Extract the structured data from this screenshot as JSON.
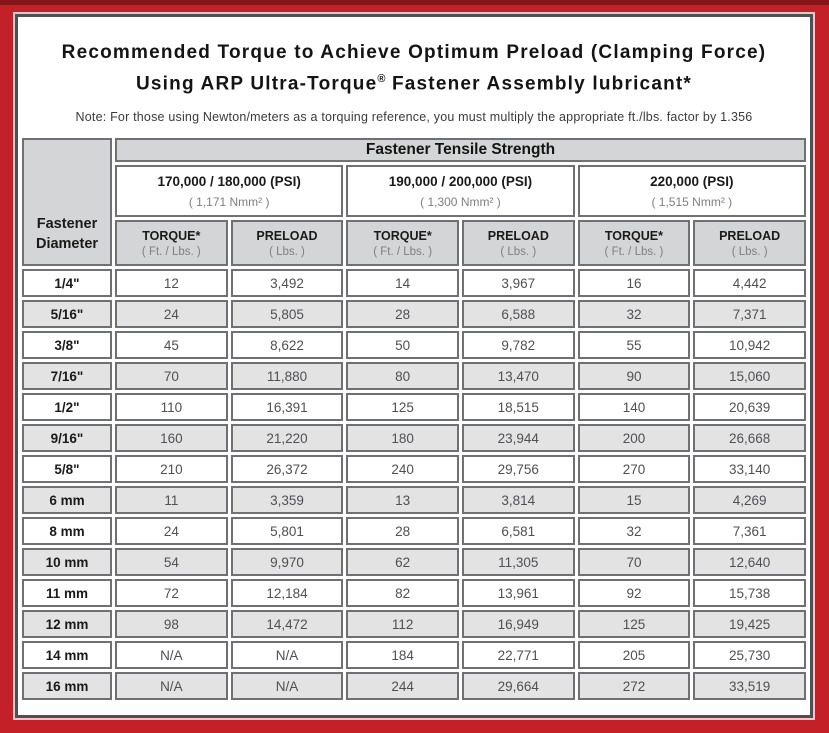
{
  "colors": {
    "frame_red": "#C32127",
    "frame_dark_red": "#86151A",
    "panel_border": "#4F5054",
    "cell_border": "#6F7073",
    "header_gray": "#D4D5D6",
    "row_alt_gray": "#E3E3E4",
    "muted_text": "#7E7F82",
    "value_text": "#4F5053"
  },
  "title": {
    "line1": "Recommended Torque to Achieve Optimum Preload (Clamping Force)",
    "line2_prefix": "Using ARP Ultra-Torque",
    "registered_mark": "®",
    "line2_suffix": " Fastener Assembly lubricant*",
    "note": "Note: For those using Newton/meters as a torquing reference, you must multiply the appropriate ft./lbs. factor by 1.356"
  },
  "table": {
    "corner_header": "Fastener Diameter",
    "group_header": "Fastener Tensile Strength",
    "strength_groups": [
      {
        "psi": "170,000 / 180,000 (PSI)",
        "nmm": "( 1,171 Nmm² )"
      },
      {
        "psi": "190,000 / 200,000 (PSI)",
        "nmm": "( 1,300 Nmm² )"
      },
      {
        "psi": "220,000 (PSI)",
        "nmm": "( 1,515 Nmm² )"
      }
    ],
    "sub_headers": {
      "torque_label": "TORQUE*",
      "torque_unit": "( Ft. / Lbs. )",
      "preload_label": "PRELOAD",
      "preload_unit": "( Lbs. )"
    },
    "rows": [
      {
        "diameter": "1/4\"",
        "values": [
          "12",
          "3,492",
          "14",
          "3,967",
          "16",
          "4,442"
        ]
      },
      {
        "diameter": "5/16\"",
        "values": [
          "24",
          "5,805",
          "28",
          "6,588",
          "32",
          "7,371"
        ]
      },
      {
        "diameter": "3/8\"",
        "values": [
          "45",
          "8,622",
          "50",
          "9,782",
          "55",
          "10,942"
        ]
      },
      {
        "diameter": "7/16\"",
        "values": [
          "70",
          "11,880",
          "80",
          "13,470",
          "90",
          "15,060"
        ]
      },
      {
        "diameter": "1/2\"",
        "values": [
          "110",
          "16,391",
          "125",
          "18,515",
          "140",
          "20,639"
        ]
      },
      {
        "diameter": "9/16\"",
        "values": [
          "160",
          "21,220",
          "180",
          "23,944",
          "200",
          "26,668"
        ]
      },
      {
        "diameter": "5/8\"",
        "values": [
          "210",
          "26,372",
          "240",
          "29,756",
          "270",
          "33,140"
        ]
      },
      {
        "diameter": "6 mm",
        "values": [
          "11",
          "3,359",
          "13",
          "3,814",
          "15",
          "4,269"
        ]
      },
      {
        "diameter": "8 mm",
        "values": [
          "24",
          "5,801",
          "28",
          "6,581",
          "32",
          "7,361"
        ]
      },
      {
        "diameter": "10 mm",
        "values": [
          "54",
          "9,970",
          "62",
          "11,305",
          "70",
          "12,640"
        ]
      },
      {
        "diameter": "11 mm",
        "values": [
          "72",
          "12,184",
          "82",
          "13,961",
          "92",
          "15,738"
        ]
      },
      {
        "diameter": "12 mm",
        "values": [
          "98",
          "14,472",
          "112",
          "16,949",
          "125",
          "19,425"
        ]
      },
      {
        "diameter": "14 mm",
        "values": [
          "N/A",
          "N/A",
          "184",
          "22,771",
          "205",
          "25,730"
        ]
      },
      {
        "diameter": "16 mm",
        "values": [
          "N/A",
          "N/A",
          "244",
          "29,664",
          "272",
          "33,519"
        ]
      }
    ]
  }
}
